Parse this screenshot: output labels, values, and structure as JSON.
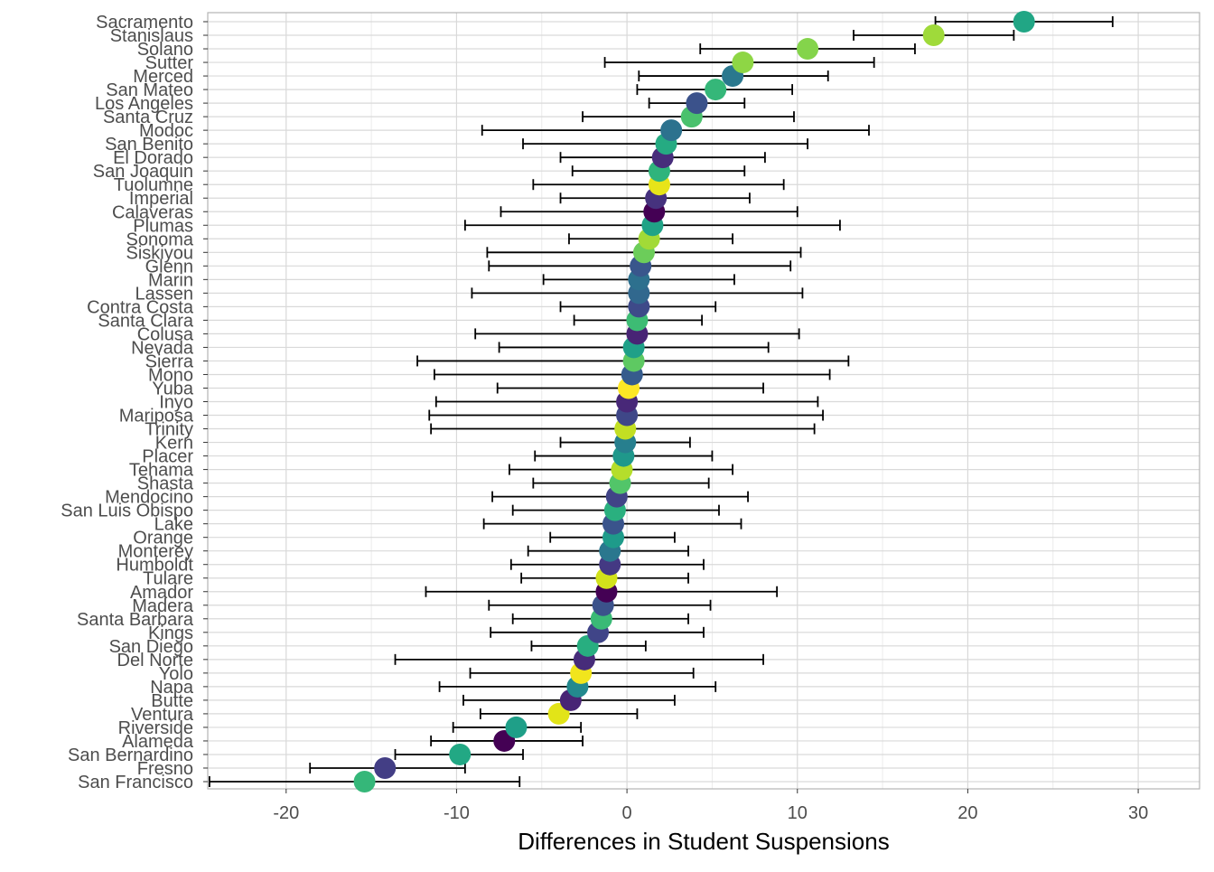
{
  "chart_data": {
    "type": "scatter",
    "subtype": "dot-and-whisker",
    "xlabel": "Differences in Student Suspensions",
    "ylabel": "",
    "xlim": [
      -24.6,
      33.6
    ],
    "x_ticks": [
      -20,
      -10,
      0,
      10,
      20,
      30
    ],
    "x_tick_labels": [
      "-20",
      "-10",
      "0",
      "10",
      "20",
      "30"
    ],
    "grid": true,
    "legend": "none",
    "colors": {
      "background": "#ffffff",
      "panel_border": "#b3b3b3",
      "grid_major": "#d9d9d9",
      "grid_minor": "#ebebeb",
      "error_bar": "#000000",
      "text": "#4d4d4d"
    },
    "points": [
      {
        "county": "Sacramento",
        "estimate": 23.3,
        "lower": 18.1,
        "upper": 28.5,
        "color": "#21a685"
      },
      {
        "county": "Stanislaus",
        "estimate": 18.0,
        "lower": 13.3,
        "upper": 22.7,
        "color": "#9fda3a"
      },
      {
        "county": "Solano",
        "estimate": 10.6,
        "lower": 4.3,
        "upper": 16.9,
        "color": "#84d44b"
      },
      {
        "county": "Sutter",
        "estimate": 6.8,
        "lower": -1.3,
        "upper": 14.5,
        "color": "#8ed645"
      },
      {
        "county": "Merced",
        "estimate": 6.2,
        "lower": 0.7,
        "upper": 11.8,
        "color": "#2a788e"
      },
      {
        "county": "San Mateo",
        "estimate": 5.2,
        "lower": 0.6,
        "upper": 9.7,
        "color": "#35b779"
      },
      {
        "county": "Los Angeles",
        "estimate": 4.1,
        "lower": 1.3,
        "upper": 6.9,
        "color": "#3b528b"
      },
      {
        "county": "Santa Cruz",
        "estimate": 3.8,
        "lower": -2.6,
        "upper": 9.8,
        "color": "#4ac16d"
      },
      {
        "county": "Modoc",
        "estimate": 2.6,
        "lower": -8.5,
        "upper": 14.2,
        "color": "#2c728e"
      },
      {
        "county": "San Benito",
        "estimate": 2.3,
        "lower": -6.1,
        "upper": 10.6,
        "color": "#25ab82"
      },
      {
        "county": "El Dorado",
        "estimate": 2.1,
        "lower": -3.9,
        "upper": 8.1,
        "color": "#472d7b"
      },
      {
        "county": "San Joaquin",
        "estimate": 1.9,
        "lower": -3.2,
        "upper": 6.9,
        "color": "#2fb47c"
      },
      {
        "county": "Tuolumne",
        "estimate": 1.9,
        "lower": -5.5,
        "upper": 9.2,
        "color": "#e7e419"
      },
      {
        "county": "Imperial",
        "estimate": 1.7,
        "lower": -3.9,
        "upper": 7.2,
        "color": "#46327e"
      },
      {
        "county": "Calaveras",
        "estimate": 1.6,
        "lower": -7.4,
        "upper": 10.0,
        "color": "#440154"
      },
      {
        "county": "Plumas",
        "estimate": 1.5,
        "lower": -9.5,
        "upper": 12.5,
        "color": "#20a386"
      },
      {
        "county": "Sonoma",
        "estimate": 1.3,
        "lower": -3.4,
        "upper": 6.2,
        "color": "#a2da37"
      },
      {
        "county": "Siskiyou",
        "estimate": 1.0,
        "lower": -8.2,
        "upper": 10.2,
        "color": "#6ccd5a"
      },
      {
        "county": "Glenn",
        "estimate": 0.8,
        "lower": -8.1,
        "upper": 9.6,
        "color": "#39568c"
      },
      {
        "county": "Marin",
        "estimate": 0.7,
        "lower": -4.9,
        "upper": 6.3,
        "color": "#2d708e"
      },
      {
        "county": "Lassen",
        "estimate": 0.7,
        "lower": -9.1,
        "upper": 10.3,
        "color": "#31688e"
      },
      {
        "county": "Contra Costa",
        "estimate": 0.7,
        "lower": -3.9,
        "upper": 5.2,
        "color": "#3e4a89"
      },
      {
        "county": "Santa Clara",
        "estimate": 0.6,
        "lower": -3.1,
        "upper": 4.4,
        "color": "#3dbc74"
      },
      {
        "county": "Colusa",
        "estimate": 0.6,
        "lower": -8.9,
        "upper": 10.1,
        "color": "#482475"
      },
      {
        "county": "Nevada",
        "estimate": 0.4,
        "lower": -7.5,
        "upper": 8.3,
        "color": "#1fa088"
      },
      {
        "county": "Sierra",
        "estimate": 0.4,
        "lower": -12.3,
        "upper": 13.0,
        "color": "#5ec962"
      },
      {
        "county": "Mono",
        "estimate": 0.3,
        "lower": -11.3,
        "upper": 11.9,
        "color": "#365c8d"
      },
      {
        "county": "Yuba",
        "estimate": 0.1,
        "lower": -7.6,
        "upper": 8.0,
        "color": "#fde725"
      },
      {
        "county": "Inyo",
        "estimate": 0.0,
        "lower": -11.2,
        "upper": 11.2,
        "color": "#482878"
      },
      {
        "county": "Mariposa",
        "estimate": 0.0,
        "lower": -11.6,
        "upper": 11.5,
        "color": "#3f4788"
      },
      {
        "county": "Trinity",
        "estimate": -0.1,
        "lower": -11.5,
        "upper": 11.0,
        "color": "#c2df23"
      },
      {
        "county": "Kern",
        "estimate": -0.1,
        "lower": -3.9,
        "upper": 3.7,
        "color": "#277f8e"
      },
      {
        "county": "Placer",
        "estimate": -0.2,
        "lower": -5.4,
        "upper": 5.0,
        "color": "#1f988b"
      },
      {
        "county": "Tehama",
        "estimate": -0.3,
        "lower": -6.9,
        "upper": 6.2,
        "color": "#b5de2b"
      },
      {
        "county": "Shasta",
        "estimate": -0.4,
        "lower": -5.5,
        "upper": 4.8,
        "color": "#52c569"
      },
      {
        "county": "Mendocino",
        "estimate": -0.6,
        "lower": -7.9,
        "upper": 7.1,
        "color": "#414487"
      },
      {
        "county": "San Luis Obispo",
        "estimate": -0.7,
        "lower": -6.7,
        "upper": 5.4,
        "color": "#2ab07f"
      },
      {
        "county": "Lake",
        "estimate": -0.8,
        "lower": -8.4,
        "upper": 6.7,
        "color": "#3a548c"
      },
      {
        "county": "Orange",
        "estimate": -0.8,
        "lower": -4.5,
        "upper": 2.8,
        "color": "#1e9b8a"
      },
      {
        "county": "Monterey",
        "estimate": -1.0,
        "lower": -5.8,
        "upper": 3.6,
        "color": "#2a778e"
      },
      {
        "county": "Humboldt",
        "estimate": -1.0,
        "lower": -6.8,
        "upper": 4.5,
        "color": "#443983"
      },
      {
        "county": "Tulare",
        "estimate": -1.2,
        "lower": -6.2,
        "upper": 3.6,
        "color": "#d2e21b"
      },
      {
        "county": "Amador",
        "estimate": -1.2,
        "lower": -11.8,
        "upper": 8.8,
        "color": "#440154"
      },
      {
        "county": "Madera",
        "estimate": -1.4,
        "lower": -8.1,
        "upper": 4.9,
        "color": "#3b528b"
      },
      {
        "county": "Santa Barbara",
        "estimate": -1.5,
        "lower": -6.7,
        "upper": 3.6,
        "color": "#3aba76"
      },
      {
        "county": "Kings",
        "estimate": -1.7,
        "lower": -8.0,
        "upper": 4.5,
        "color": "#404588"
      },
      {
        "county": "San Diego",
        "estimate": -2.3,
        "lower": -5.6,
        "upper": 1.1,
        "color": "#28ae80"
      },
      {
        "county": "Del Norte",
        "estimate": -2.5,
        "lower": -13.6,
        "upper": 8.0,
        "color": "#472c7a"
      },
      {
        "county": "Yolo",
        "estimate": -2.7,
        "lower": -9.2,
        "upper": 3.9,
        "color": "#f1e51d"
      },
      {
        "county": "Napa",
        "estimate": -2.9,
        "lower": -11.0,
        "upper": 5.2,
        "color": "#23898e"
      },
      {
        "county": "Butte",
        "estimate": -3.3,
        "lower": -9.6,
        "upper": 2.8,
        "color": "#482475"
      },
      {
        "county": "Ventura",
        "estimate": -4.0,
        "lower": -8.6,
        "upper": 0.6,
        "color": "#e2e418"
      },
      {
        "county": "Riverside",
        "estimate": -6.5,
        "lower": -10.2,
        "upper": -2.7,
        "color": "#1f9f88"
      },
      {
        "county": "Alameda",
        "estimate": -7.2,
        "lower": -11.5,
        "upper": -2.6,
        "color": "#440154"
      },
      {
        "county": "San Bernardino",
        "estimate": -9.8,
        "lower": -13.6,
        "upper": -6.1,
        "color": "#22a884"
      },
      {
        "county": "Fresno",
        "estimate": -14.2,
        "lower": -18.6,
        "upper": -9.5,
        "color": "#433e85"
      },
      {
        "county": "San Francisco",
        "estimate": -15.4,
        "lower": -24.5,
        "upper": -6.3,
        "color": "#35b779"
      }
    ]
  }
}
